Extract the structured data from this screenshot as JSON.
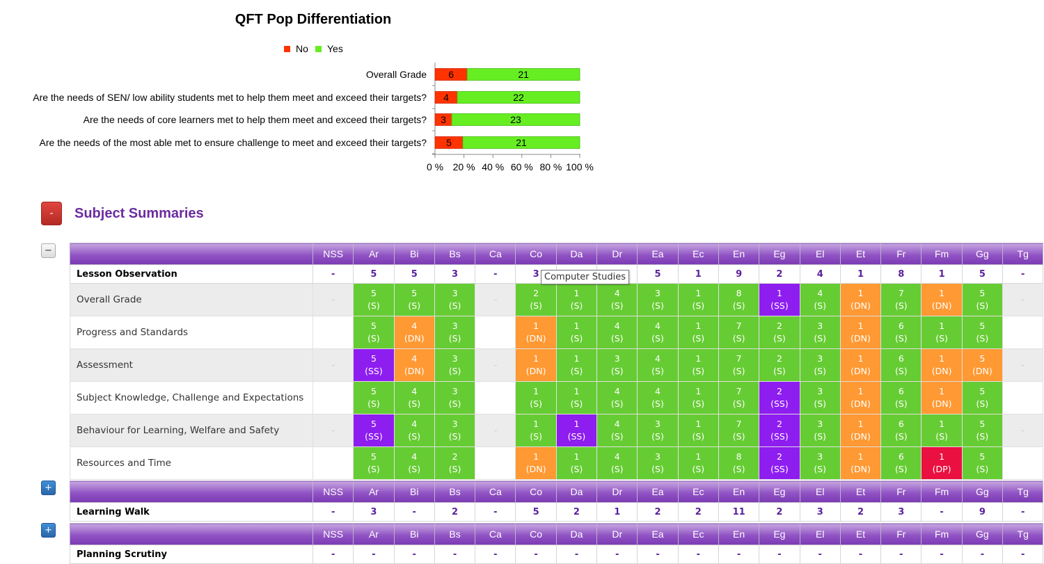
{
  "chart_data": {
    "type": "bar",
    "stacked": "percent",
    "orientation": "horizontal",
    "title": "QFT Pop Differentiation",
    "legend_placement": "top",
    "categories": [
      "Overall Grade",
      "Are the needs of SEN/ low ability students met to help them meet and exceed their targets?",
      "Are the needs of core learners met to help them meet and exceed their targets?",
      "Are the needs of the most able met to ensure challenge to meet and exceed their targets?"
    ],
    "series": [
      {
        "name": "No",
        "color": "#ff3300",
        "values": [
          6,
          4,
          3,
          5
        ]
      },
      {
        "name": "Yes",
        "color": "#66ee22",
        "values": [
          21,
          22,
          23,
          21
        ]
      }
    ],
    "x_ticks": [
      "0 %",
      "20 %",
      "40 %",
      "60 %",
      "80 %",
      "100 %"
    ],
    "xlim": [
      0,
      100
    ]
  },
  "summaries": {
    "title": "Subject Summaries",
    "collapse_symbol": "-",
    "minus_symbol": "−",
    "plus_symbol": "+"
  },
  "subjects": [
    "NSS",
    "Ar",
    "Bi",
    "Bs",
    "Ca",
    "Co",
    "Da",
    "Dr",
    "Ea",
    "Ec",
    "En",
    "Eg",
    "El",
    "Et",
    "Fr",
    "Fm",
    "Gg",
    "Tg"
  ],
  "colors": {
    "S": "#66cc33",
    "SS": "#8e1df0",
    "DN": "#ff9933",
    "DP": "#ea1140"
  },
  "lesson_observation": {
    "title": "Lesson Observation",
    "counts": [
      "-",
      "5",
      "5",
      "3",
      "-",
      "3",
      "",
      "",
      "5",
      "1",
      "9",
      "2",
      "4",
      "1",
      "8",
      "1",
      "5",
      "-"
    ],
    "rows": [
      {
        "label": "Overall Grade",
        "cells": [
          "-",
          "5|S",
          "5|S",
          "3|S",
          "-",
          "2|S",
          "1|S",
          "4|S",
          "3|S",
          "1|S",
          "8|S",
          "1|SS",
          "4|S",
          "1|DN",
          "7|S",
          "1|DN",
          "5|S",
          "-"
        ]
      },
      {
        "label": "Progress and Standards",
        "cells": [
          "",
          "5|S",
          "4|DN",
          "3|S",
          "",
          "1|DN",
          "1|S",
          "4|S",
          "4|S",
          "1|S",
          "7|S",
          "2|S",
          "3|S",
          "1|DN",
          "6|S",
          "1|S",
          "5|S",
          ""
        ]
      },
      {
        "label": "Assessment",
        "cells": [
          "-",
          "5|SS",
          "4|DN",
          "3|S",
          "-",
          "1|DN",
          "1|S",
          "3|S",
          "4|S",
          "1|S",
          "7|S",
          "2|S",
          "3|S",
          "1|DN",
          "6|S",
          "1|DN",
          "5|DN",
          "-"
        ]
      },
      {
        "label": "Subject Knowledge, Challenge and Expectations",
        "cells": [
          "",
          "5|S",
          "4|S",
          "3|S",
          "",
          "1|S",
          "1|S",
          "4|S",
          "4|S",
          "1|S",
          "7|S",
          "2|SS",
          "3|S",
          "1|DN",
          "6|S",
          "1|DN",
          "5|S",
          ""
        ]
      },
      {
        "label": "Behaviour for Learning, Welfare and Safety",
        "cells": [
          "-",
          "5|SS",
          "4|S",
          "3|S",
          "-",
          "1|S",
          "1|SS",
          "4|S",
          "3|S",
          "1|S",
          "7|S",
          "2|SS",
          "3|S",
          "1|DN",
          "6|S",
          "1|S",
          "5|S",
          "-"
        ]
      },
      {
        "label": "Resources and Time",
        "cells": [
          "",
          "5|S",
          "4|S",
          "2|S",
          "",
          "1|DN",
          "1|S",
          "4|S",
          "3|S",
          "1|S",
          "8|S",
          "2|SS",
          "3|S",
          "1|DN",
          "6|S",
          "1|DP",
          "5|S",
          ""
        ]
      }
    ]
  },
  "learning_walk": {
    "title": "Learning Walk",
    "counts": [
      "-",
      "3",
      "-",
      "2",
      "-",
      "5",
      "2",
      "1",
      "2",
      "2",
      "11",
      "2",
      "3",
      "2",
      "3",
      "-",
      "9",
      "-"
    ]
  },
  "planning_scrutiny": {
    "title": "Planning Scrutiny",
    "counts": [
      "-",
      "-",
      "-",
      "-",
      "-",
      "-",
      "-",
      "-",
      "-",
      "-",
      "-",
      "-",
      "-",
      "-",
      "-",
      "-",
      "-",
      "-"
    ]
  },
  "tooltip": "Computer Studies"
}
